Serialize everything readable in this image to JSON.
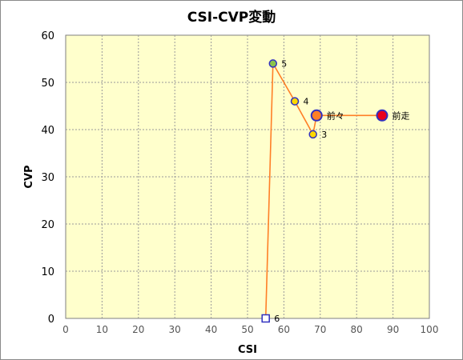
{
  "chart_data": {
    "type": "scatter",
    "title": "CSI-CVP変動",
    "xlabel": "CSI",
    "ylabel": "CVP",
    "xlim": [
      0,
      100
    ],
    "ylim": [
      0,
      60
    ],
    "xticks": [
      0,
      10,
      20,
      30,
      40,
      50,
      60,
      70,
      80,
      90,
      100
    ],
    "yticks": [
      0,
      10,
      20,
      30,
      40,
      50,
      60
    ],
    "grid": true,
    "plot_background": "#ffffcc",
    "line_color": "#ff7f27",
    "points": [
      {
        "label": "前走",
        "x": 87,
        "y": 43,
        "marker": "circle-large",
        "fill": "#e8001c",
        "stroke": "#3030c0"
      },
      {
        "label": "前々",
        "x": 69,
        "y": 43,
        "marker": "circle-large",
        "fill": "#ff7f27",
        "stroke": "#3030c0"
      },
      {
        "label": "3",
        "x": 68,
        "y": 39,
        "marker": "circle",
        "fill": "#ffd700",
        "stroke": "#3030c0"
      },
      {
        "label": "4",
        "x": 63,
        "y": 46,
        "marker": "circle",
        "fill": "#ffd700",
        "stroke": "#3030c0"
      },
      {
        "label": "5",
        "x": 57,
        "y": 54,
        "marker": "circle",
        "fill": "#8bc34a",
        "stroke": "#3030c0"
      },
      {
        "label": "6",
        "x": 55,
        "y": 0,
        "marker": "square",
        "fill": "#ffffff",
        "stroke": "#3030c0"
      }
    ]
  }
}
